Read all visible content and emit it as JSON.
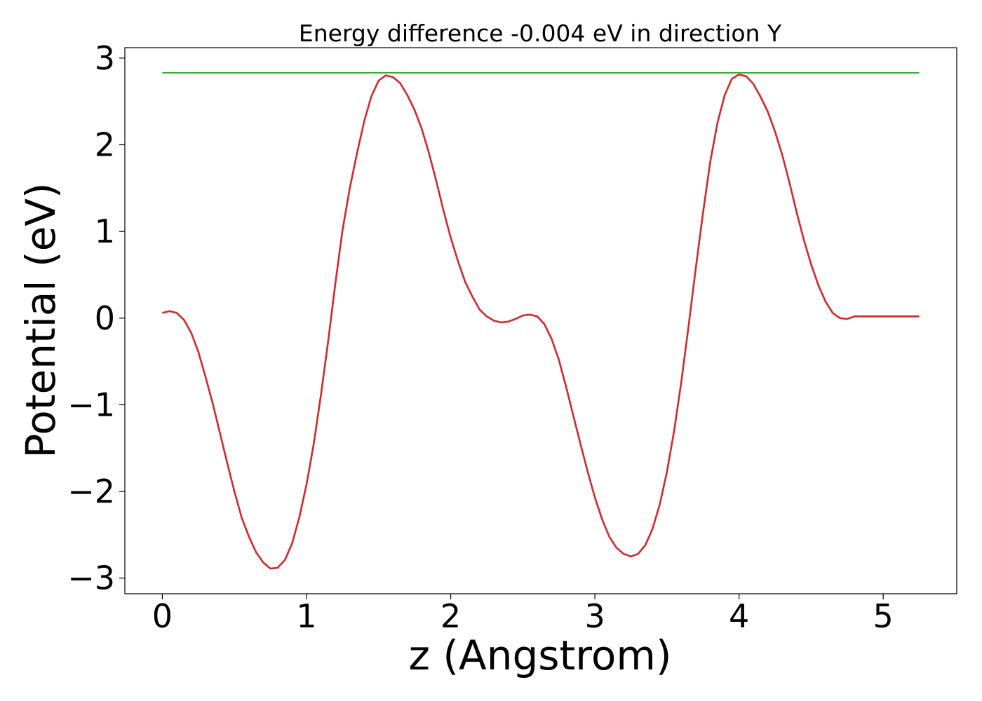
{
  "chart_data": {
    "type": "line",
    "title": "Energy difference -0.004 eV in direction Y",
    "xlabel": "z (Angstrom)",
    "ylabel": "Potential (eV)",
    "xlim": [
      -0.26,
      5.51
    ],
    "ylim": [
      -3.18,
      3.12
    ],
    "xticks": [
      0,
      1,
      2,
      3,
      4,
      5
    ],
    "yticks": [
      -3,
      -2,
      -1,
      0,
      1,
      2,
      3
    ],
    "xtick_labels": [
      "0",
      "1",
      "2",
      "3",
      "4",
      "5"
    ],
    "ytick_labels": [
      "−3",
      "−2",
      "−1",
      "0",
      "1",
      "2",
      "3"
    ],
    "grid": false,
    "series": [
      {
        "color": "#d62728",
        "x": [
          0,
          0.05,
          0.1,
          0.15,
          0.2,
          0.25,
          0.3,
          0.35,
          0.4,
          0.45,
          0.5,
          0.55,
          0.6,
          0.65,
          0.7,
          0.75,
          0.8,
          0.85,
          0.9,
          0.95,
          1.0,
          1.05,
          1.1,
          1.15,
          1.2,
          1.25,
          1.3,
          1.35,
          1.4,
          1.45,
          1.5,
          1.55,
          1.6,
          1.65,
          1.7,
          1.75,
          1.8,
          1.85,
          1.9,
          1.95,
          2.0,
          2.05,
          2.1,
          2.15,
          2.2,
          2.25,
          2.3,
          2.35,
          2.4,
          2.45,
          2.5,
          2.55,
          2.6,
          2.65,
          2.7,
          2.75,
          2.8,
          2.85,
          2.9,
          2.95,
          3.0,
          3.05,
          3.1,
          3.15,
          3.2,
          3.25,
          3.3,
          3.35,
          3.4,
          3.45,
          3.5,
          3.55,
          3.6,
          3.65,
          3.7,
          3.75,
          3.8,
          3.85,
          3.9,
          3.95,
          4.0,
          4.05,
          4.1,
          4.15,
          4.2,
          4.25,
          4.3,
          4.35,
          4.4,
          4.45,
          4.5,
          4.55,
          4.6,
          4.65,
          4.7,
          4.75,
          4.8,
          4.85,
          4.9,
          4.95,
          5.0,
          5.05,
          5.1,
          5.15,
          5.2,
          5.25
        ],
        "y": [
          0.06,
          0.08,
          0.06,
          -0.02,
          -0.17,
          -0.39,
          -0.68,
          -0.99,
          -1.33,
          -1.67,
          -2.0,
          -2.3,
          -2.52,
          -2.7,
          -2.82,
          -2.89,
          -2.88,
          -2.79,
          -2.6,
          -2.3,
          -1.92,
          -1.45,
          -0.89,
          -0.27,
          0.4,
          1.02,
          1.5,
          1.9,
          2.27,
          2.56,
          2.74,
          2.8,
          2.78,
          2.71,
          2.57,
          2.4,
          2.18,
          1.9,
          1.58,
          1.24,
          0.93,
          0.66,
          0.42,
          0.25,
          0.1,
          0.02,
          -0.03,
          -0.05,
          -0.04,
          -0.01,
          0.03,
          0.04,
          0.02,
          -0.07,
          -0.24,
          -0.48,
          -0.79,
          -1.12,
          -1.45,
          -1.77,
          -2.07,
          -2.32,
          -2.52,
          -2.65,
          -2.72,
          -2.75,
          -2.72,
          -2.62,
          -2.43,
          -2.15,
          -1.77,
          -1.3,
          -0.73,
          -0.09,
          0.58,
          1.21,
          1.8,
          2.25,
          2.57,
          2.76,
          2.81,
          2.79,
          2.7,
          2.55,
          2.38,
          2.15,
          1.88,
          1.56,
          1.22,
          0.9,
          0.62,
          0.38,
          0.19,
          0.06,
          0.0,
          -0.01,
          0.02,
          0.02,
          0.02,
          0.02,
          0.02,
          0.02,
          0.02,
          0.02,
          0.02,
          0.02
        ]
      },
      {
        "color": "#2ca02c",
        "x": [
          0,
          5.25
        ],
        "y": [
          2.83,
          2.83
        ]
      }
    ]
  }
}
